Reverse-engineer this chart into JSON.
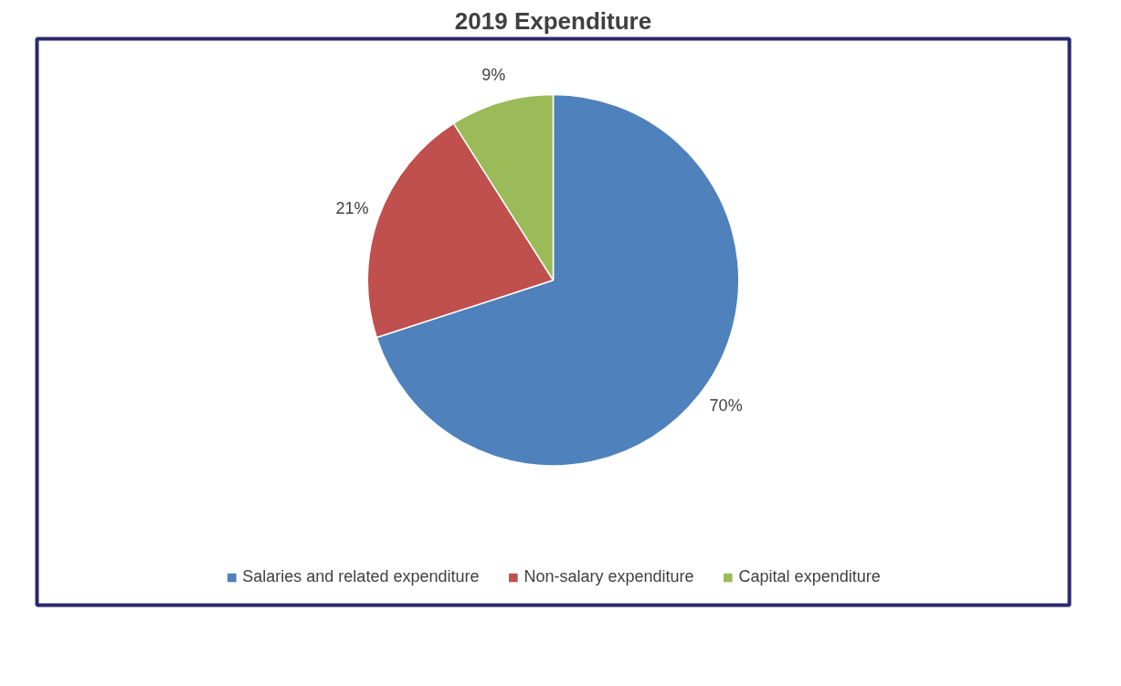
{
  "chart_data": {
    "type": "pie",
    "title": "2019 Expenditure",
    "categories": [
      "Salaries and related expenditure",
      "Non-salary expenditure",
      "Capital expenditure"
    ],
    "values": [
      70,
      21,
      9
    ],
    "colors": [
      "#4f81bd",
      "#c0504d",
      "#9bbb59"
    ],
    "value_labels": [
      "70%",
      "21%",
      "9%"
    ],
    "legend": "bottom"
  }
}
